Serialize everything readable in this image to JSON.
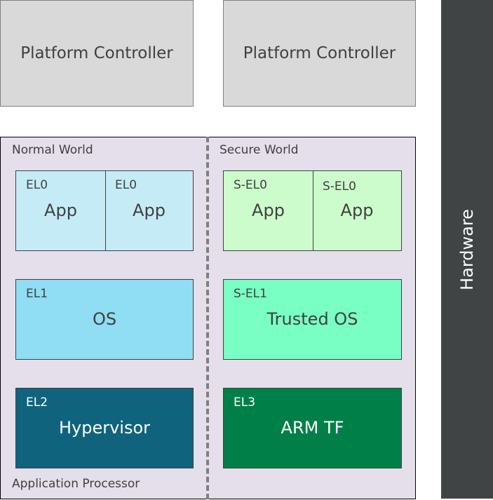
{
  "platform_controllers": [
    "Platform Controller",
    "Platform Controller"
  ],
  "hardware": "Hardware",
  "application_processor": "Application Processor",
  "normal_world": {
    "label": "Normal World",
    "el0": [
      {
        "level": "EL0",
        "name": "App"
      },
      {
        "level": "EL0",
        "name": "App"
      }
    ],
    "el1": {
      "level": "EL1",
      "name": "OS"
    },
    "el2": {
      "level": "EL2",
      "name": "Hypervisor"
    }
  },
  "secure_world": {
    "label": "Secure World",
    "el0": [
      {
        "level": "S-EL0",
        "name": "App"
      },
      {
        "level": "S-EL0",
        "name": "App"
      }
    ],
    "el1": {
      "level": "S-EL1",
      "name": "Trusted OS"
    },
    "el3": {
      "level": "EL3",
      "name": "ARM TF"
    }
  },
  "colors": {
    "el0": "#c5ecf6",
    "el1": "#8fdef3",
    "el2": "#10637c",
    "s_el0": "#ccfccc",
    "s_el1": "#79ffc4",
    "el3": "#008048",
    "hardware": "#404444",
    "processor": "#e4dfeb"
  }
}
